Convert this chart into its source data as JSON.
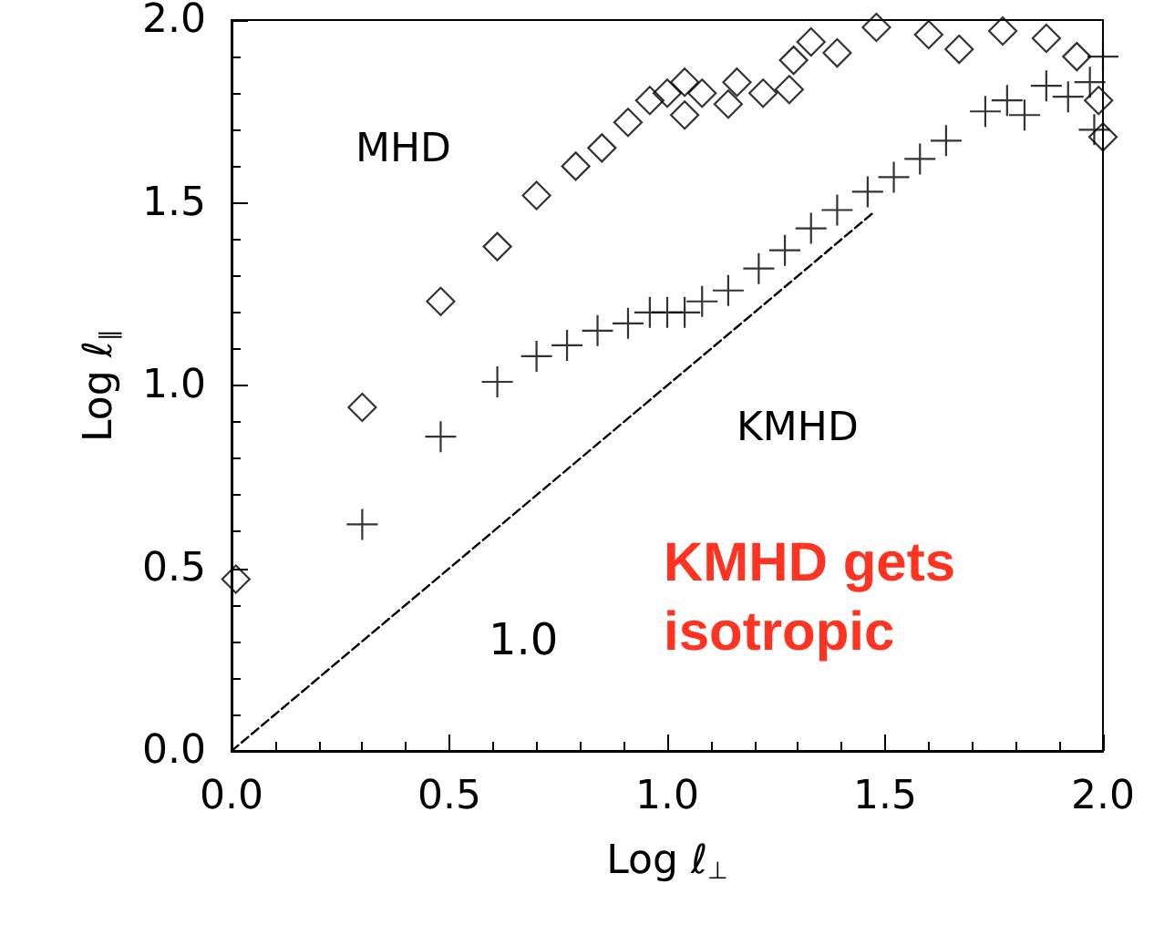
{
  "chart_data": {
    "type": "scatter",
    "xlabel": "Log ℓ$_{⊥}$",
    "ylabel": "Log ℓ$_{∥}$",
    "xlim": [
      0,
      2
    ],
    "ylim": [
      0,
      2
    ],
    "xticks": [
      {
        "value": 0,
        "label": "0.0"
      },
      0.5,
      {
        "value": 1,
        "label": "1.0"
      },
      1.5,
      {
        "value": 2,
        "label": "2.0"
      }
    ],
    "yticks": [
      {
        "value": 0,
        "label": "0.0"
      },
      0.5,
      {
        "value": 1,
        "label": "1.0"
      },
      1.5,
      {
        "value": 2,
        "label": "2.0"
      }
    ],
    "grid": false,
    "series": [
      {
        "type": "scatter",
        "marker": "diamond",
        "color": "#000000",
        "x": [
          0.01,
          0.3,
          0.48,
          0.61,
          0.7,
          0.79,
          0.85,
          0.91,
          0.96,
          1.0,
          1.04,
          1.04,
          1.08,
          1.14,
          1.16,
          1.22,
          1.28,
          1.29,
          1.33,
          1.39,
          1.48,
          1.6,
          1.67,
          1.77,
          1.87,
          1.94,
          1.99,
          2.0
        ],
        "values": [
          0.47,
          0.94,
          1.23,
          1.38,
          1.52,
          1.6,
          1.65,
          1.72,
          1.78,
          1.8,
          1.83,
          1.74,
          1.8,
          1.77,
          1.83,
          1.8,
          1.81,
          1.89,
          1.94,
          1.91,
          1.98,
          1.96,
          1.92,
          1.97,
          1.95,
          1.9,
          1.78,
          1.68
        ]
      },
      {
        "type": "scatter",
        "marker": "cross",
        "color": "#000000",
        "x": [
          0.3,
          0.48,
          0.61,
          0.7,
          0.77,
          0.84,
          0.91,
          0.96,
          1.0,
          1.04,
          1.08,
          1.14,
          1.21,
          1.27,
          1.33,
          1.39,
          1.46,
          1.52,
          1.58,
          1.64,
          1.73,
          1.78,
          1.82,
          1.87,
          1.92,
          1.97,
          2.0,
          1.98
        ],
        "values": [
          0.62,
          0.86,
          1.01,
          1.08,
          1.11,
          1.15,
          1.17,
          1.2,
          1.2,
          1.2,
          1.23,
          1.26,
          1.32,
          1.37,
          1.43,
          1.48,
          1.53,
          1.57,
          1.62,
          1.67,
          1.75,
          1.78,
          1.74,
          1.82,
          1.79,
          1.83,
          1.9,
          1.7
        ]
      },
      {
        "type": "line",
        "marker": "none",
        "line_style": "dashed",
        "color": "#000000",
        "x": [
          0,
          1.47
        ],
        "values": [
          0,
          1.47
        ]
      }
    ],
    "annotations": [
      "MHD",
      "KMHD",
      "1.0",
      "KMHD gets isotropic"
    ]
  }
}
